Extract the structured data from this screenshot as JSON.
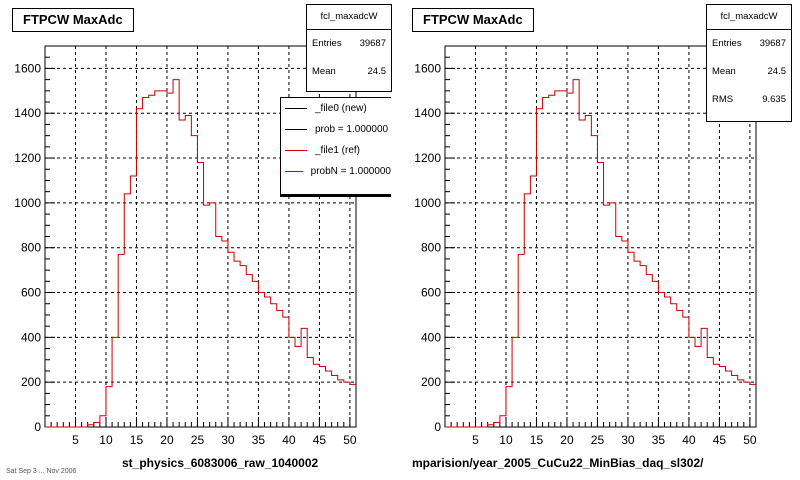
{
  "left_panel": {
    "title": "FTPCW MaxAdc",
    "x_label": "st_physics_6083006_raw_1040002",
    "stats": {
      "name": "fcl_maxadcW",
      "entries_label": "Entries",
      "entries_value": "39687",
      "mean_label": "Mean",
      "mean_value": "24.5"
    },
    "legend": [
      "_file0 (new)",
      "prob = 1.000000",
      "_file1 (ref)",
      "probN = 1.000000"
    ]
  },
  "right_panel": {
    "title": "FTPCW MaxAdc",
    "x_label": "mparision/year_2005_CuCu22_MinBias_daq_sl302/",
    "stats": {
      "name": "fcl_maxadcW",
      "entries_label": "Entries",
      "entries_value": "39687",
      "mean_label": "Mean",
      "mean_value": "24.5",
      "rms_label": "RMS",
      "rms_value": "9.635"
    }
  },
  "footnote": "Sat Sep 3 ... Nov 2006",
  "colors": {
    "hist_line": "#cc0000",
    "legend_new": "#000000",
    "legend_ref": "#cc0000",
    "grid": "#000000"
  },
  "chart_data": [
    {
      "type": "line",
      "step": true,
      "title": "FTPCW MaxAdc",
      "xlabel": "st_physics_6083006_raw_1040002",
      "ylabel": "",
      "xlim": [
        0,
        51
      ],
      "ylim": [
        0,
        1700
      ],
      "xticks": [
        5,
        10,
        15,
        20,
        25,
        30,
        35,
        40,
        45,
        50
      ],
      "yticks": [
        0,
        200,
        400,
        600,
        800,
        1000,
        1200,
        1400,
        1600
      ],
      "grid": true,
      "legend_position": "top-right",
      "x": [
        0,
        1,
        2,
        3,
        4,
        5,
        6,
        7,
        8,
        9,
        10,
        11,
        12,
        13,
        14,
        15,
        16,
        17,
        18,
        19,
        20,
        21,
        22,
        23,
        24,
        25,
        26,
        27,
        28,
        29,
        30,
        31,
        32,
        33,
        34,
        35,
        36,
        37,
        38,
        39,
        40,
        41,
        42,
        43,
        44,
        45,
        46,
        47,
        48,
        49,
        50
      ],
      "series": [
        {
          "name": "_file1 (ref)",
          "values": [
            0,
            0,
            0,
            0,
            0,
            0,
            0,
            10,
            20,
            50,
            180,
            400,
            770,
            1040,
            1120,
            1420,
            1470,
            1480,
            1500,
            1500,
            1490,
            1550,
            1370,
            1390,
            1300,
            1180,
            990,
            1000,
            850,
            830,
            780,
            740,
            720,
            680,
            650,
            600,
            580,
            550,
            520,
            490,
            400,
            360,
            440,
            310,
            280,
            270,
            250,
            230,
            210,
            200,
            190
          ]
        }
      ]
    },
    {
      "type": "line",
      "step": true,
      "title": "FTPCW MaxAdc",
      "xlabel": "mparision/year_2005_CuCu22_MinBias_daq_sl302/",
      "ylabel": "",
      "xlim": [
        0,
        51
      ],
      "ylim": [
        0,
        1700
      ],
      "xticks": [
        5,
        10,
        15,
        20,
        25,
        30,
        35,
        40,
        45,
        50
      ],
      "yticks": [
        0,
        200,
        400,
        600,
        800,
        1000,
        1200,
        1400,
        1600
      ],
      "grid": true,
      "x": [
        0,
        1,
        2,
        3,
        4,
        5,
        6,
        7,
        8,
        9,
        10,
        11,
        12,
        13,
        14,
        15,
        16,
        17,
        18,
        19,
        20,
        21,
        22,
        23,
        24,
        25,
        26,
        27,
        28,
        29,
        30,
        31,
        32,
        33,
        34,
        35,
        36,
        37,
        38,
        39,
        40,
        41,
        42,
        43,
        44,
        45,
        46,
        47,
        48,
        49,
        50
      ],
      "series": [
        {
          "values": [
            0,
            0,
            0,
            0,
            0,
            0,
            0,
            10,
            20,
            50,
            180,
            400,
            770,
            1040,
            1120,
            1420,
            1470,
            1480,
            1500,
            1500,
            1490,
            1550,
            1370,
            1390,
            1300,
            1180,
            990,
            1000,
            850,
            830,
            780,
            740,
            720,
            680,
            650,
            600,
            580,
            550,
            520,
            490,
            400,
            360,
            440,
            310,
            280,
            270,
            250,
            230,
            210,
            200,
            190
          ]
        }
      ]
    }
  ]
}
